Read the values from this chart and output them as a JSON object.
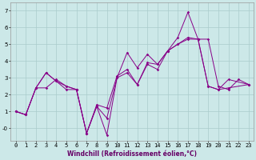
{
  "xlabel": "Windchill (Refroidissement éolien,°C)",
  "background_color": "#cce8e8",
  "grid_color": "#aacccc",
  "line_color": "#880088",
  "xlim": [
    -0.5,
    23.5
  ],
  "ylim": [
    -0.75,
    7.5
  ],
  "xticks": [
    0,
    1,
    2,
    3,
    4,
    5,
    6,
    7,
    8,
    9,
    10,
    11,
    12,
    13,
    14,
    15,
    16,
    17,
    18,
    19,
    20,
    21,
    22,
    23
  ],
  "yticks": [
    0,
    1,
    2,
    3,
    4,
    5,
    6,
    7
  ],
  "ytick_labels": [
    "-0",
    "1",
    "2",
    "3",
    "4",
    "5",
    "6",
    "7"
  ],
  "s1_x": [
    0,
    1,
    2,
    3,
    4,
    5,
    6,
    7,
    8,
    9,
    10,
    11,
    12,
    13,
    14,
    15,
    16,
    17,
    18,
    19,
    20,
    21,
    22,
    23
  ],
  "s1_y": [
    1.0,
    0.8,
    2.4,
    3.3,
    2.8,
    2.3,
    2.3,
    -0.3,
    1.4,
    1.2,
    3.1,
    3.5,
    2.6,
    3.9,
    3.8,
    4.6,
    5.4,
    6.9,
    5.3,
    5.3,
    2.5,
    2.3,
    2.9,
    2.6
  ],
  "s2_x": [
    0,
    1,
    2,
    3,
    4,
    5,
    6,
    7,
    8,
    9,
    10,
    11,
    12,
    13,
    14,
    15,
    16,
    17,
    18,
    19,
    20,
    21,
    23
  ],
  "s2_y": [
    1.0,
    0.8,
    2.4,
    2.4,
    2.9,
    2.5,
    2.3,
    -0.3,
    1.3,
    0.6,
    3.0,
    3.3,
    2.6,
    3.8,
    3.5,
    4.6,
    5.0,
    5.3,
    5.3,
    2.5,
    2.3,
    2.4,
    2.6
  ],
  "s3_x": [
    0,
    1,
    2,
    3,
    4,
    5,
    6,
    7,
    8,
    9,
    10,
    11,
    12,
    13,
    14,
    15,
    16,
    17,
    18,
    19,
    20,
    21,
    23
  ],
  "s3_y": [
    1.0,
    0.8,
    2.4,
    3.3,
    2.8,
    2.5,
    2.3,
    -0.3,
    1.3,
    -0.4,
    3.0,
    4.5,
    3.6,
    4.4,
    3.8,
    4.6,
    5.0,
    5.4,
    5.3,
    2.5,
    2.3,
    2.9,
    2.6
  ],
  "xlabel_fontsize": 5.5,
  "xlabel_color": "#660066",
  "tick_fontsize": 5.0,
  "linewidth": 0.7,
  "markersize": 1.8
}
